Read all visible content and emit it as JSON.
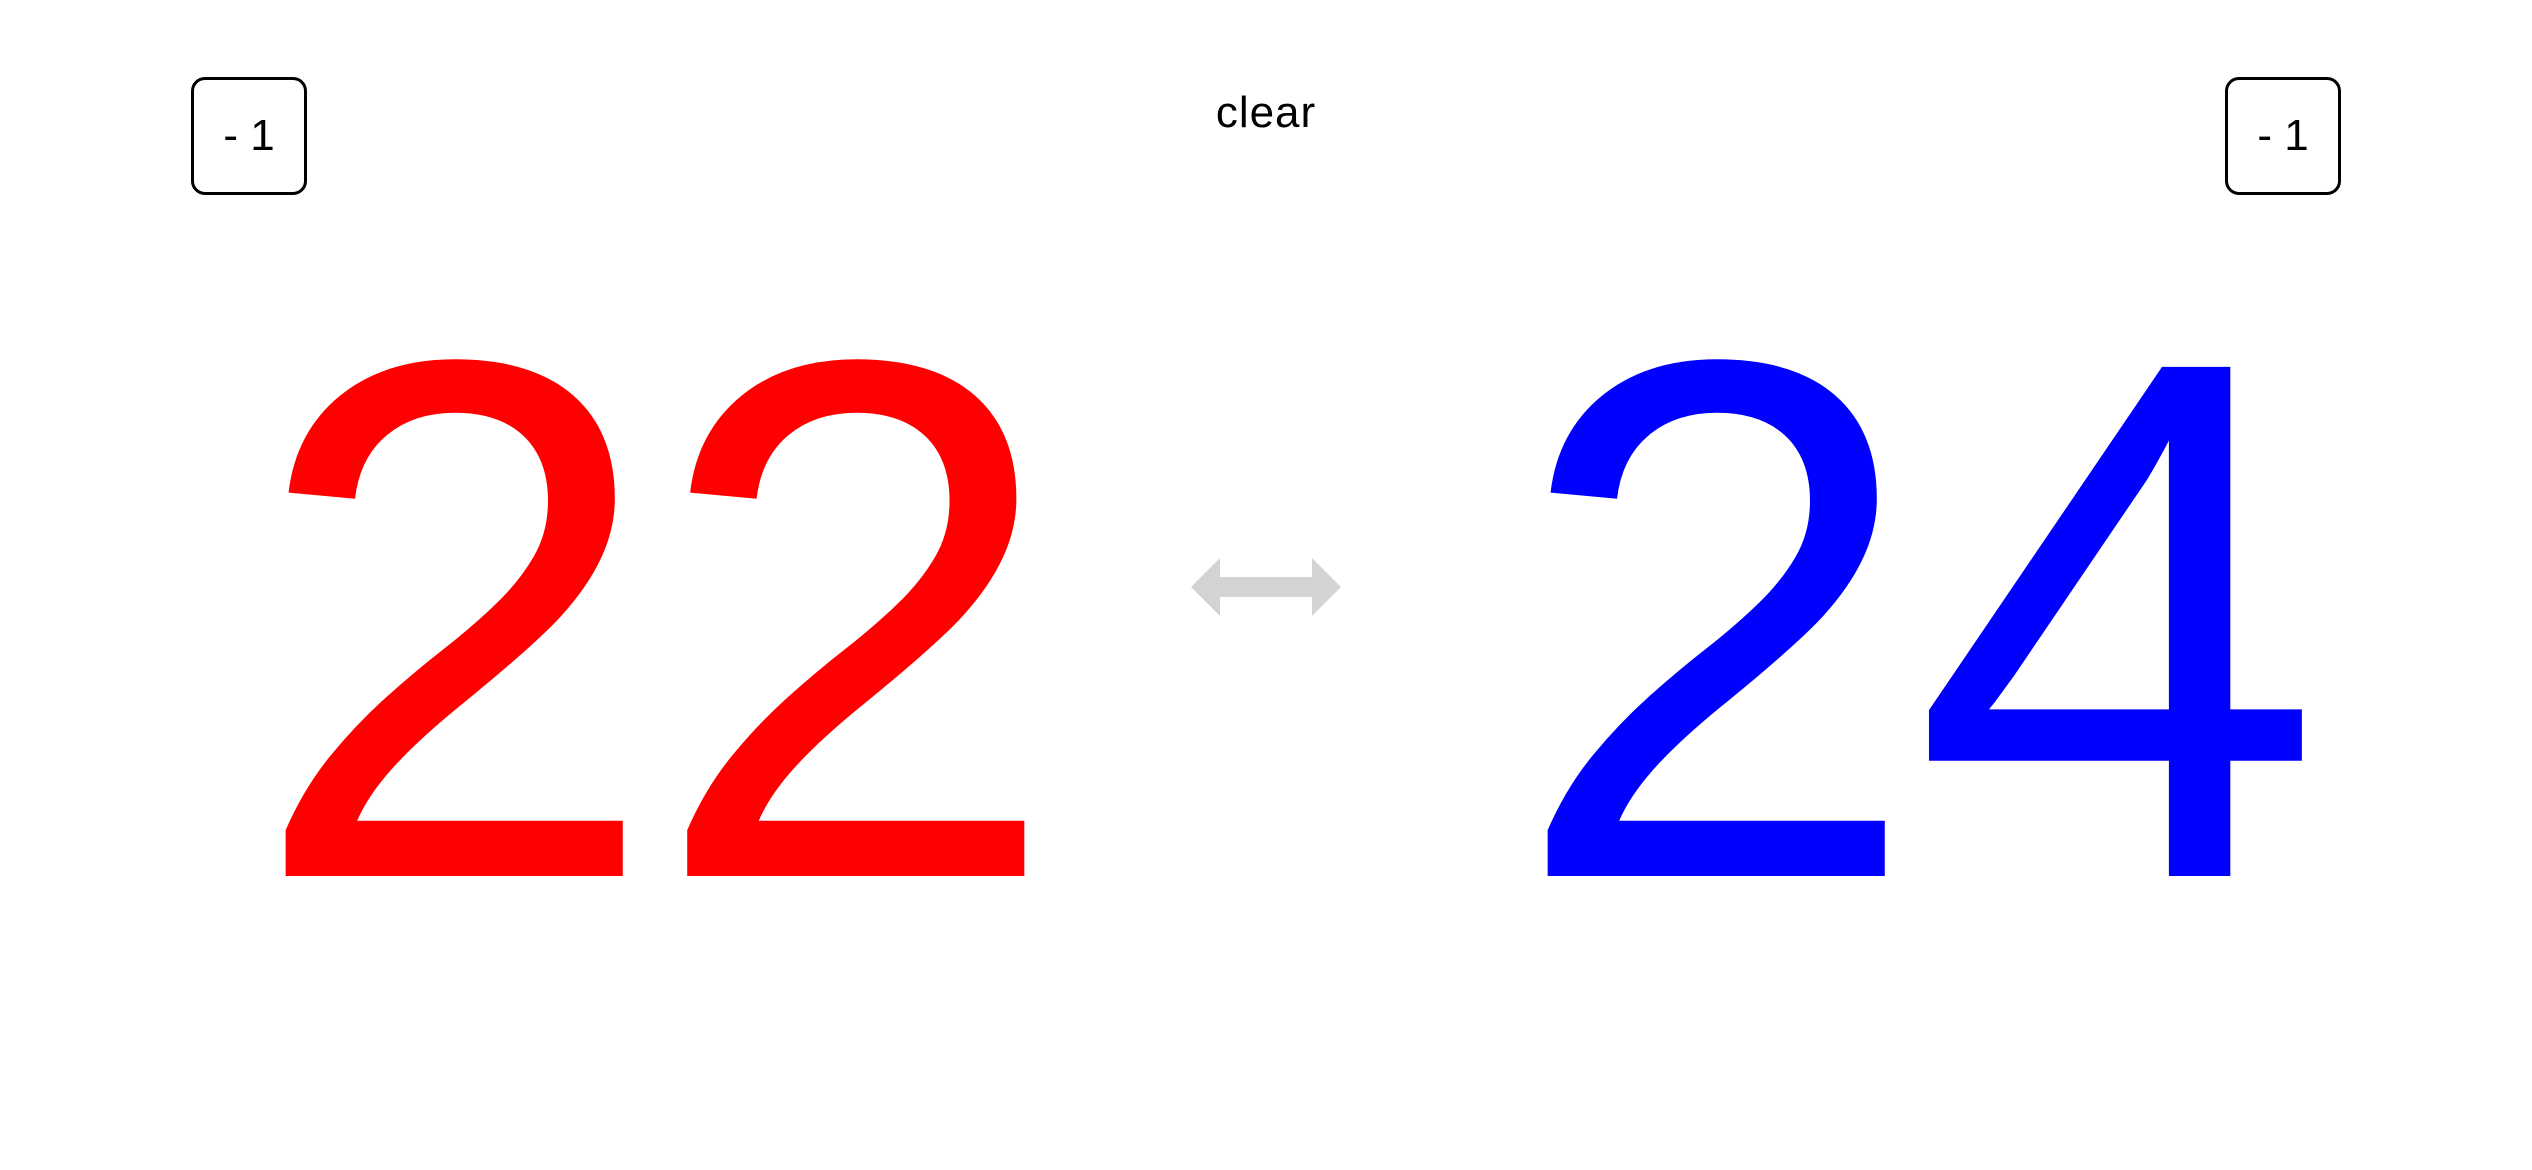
{
  "left_player": {
    "decrement_label": "- 1",
    "score": "22",
    "color": "#ff0000"
  },
  "right_player": {
    "decrement_label": "- 1",
    "score": "24",
    "color": "#0000ff"
  },
  "clear_label": "clear",
  "swap": {
    "icon": "swap-arrows-icon",
    "color": "#d3d3d3"
  }
}
